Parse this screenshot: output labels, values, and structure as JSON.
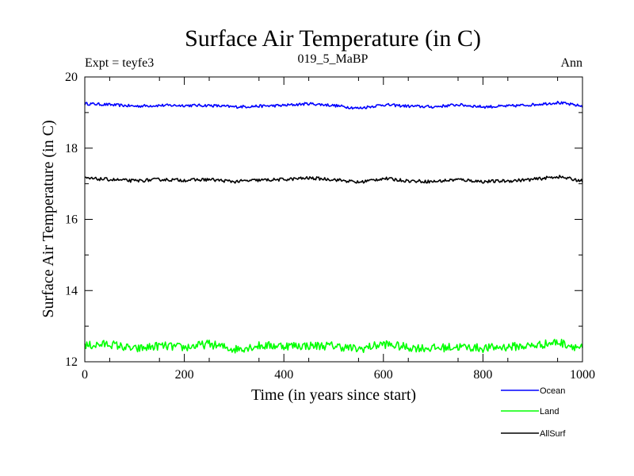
{
  "chart_data": {
    "type": "line",
    "title": "Surface Air Temperature (in C)",
    "subtitle_left": "Expt = teyfe3",
    "subtitle_center": "019_5_MaBP",
    "subtitle_right": "Ann",
    "xlabel": "Time (in years since start)",
    "ylabel": "Surface Air Temperature (in C)",
    "xlim": [
      0,
      1000
    ],
    "ylim": [
      12,
      20
    ],
    "xticks": [
      0,
      200,
      400,
      600,
      800,
      1000
    ],
    "yticks": [
      12,
      14,
      16,
      18,
      20
    ],
    "grid": false,
    "legend_position": "bottom-right",
    "series": [
      {
        "name": "Ocean",
        "color": "#0000ff",
        "x": [
          0,
          50,
          100,
          150,
          200,
          250,
          300,
          350,
          400,
          450,
          500,
          550,
          600,
          650,
          700,
          750,
          800,
          850,
          900,
          950,
          1000
        ],
        "values": [
          19.25,
          19.22,
          19.18,
          19.2,
          19.2,
          19.2,
          19.16,
          19.18,
          19.2,
          19.25,
          19.2,
          19.12,
          19.22,
          19.18,
          19.16,
          19.22,
          19.16,
          19.18,
          19.22,
          19.28,
          19.18
        ]
      },
      {
        "name": "Land",
        "color": "#00ff00",
        "x": [
          0,
          50,
          100,
          150,
          200,
          250,
          300,
          350,
          400,
          450,
          500,
          550,
          600,
          650,
          700,
          750,
          800,
          850,
          900,
          950,
          1000
        ],
        "values": [
          12.45,
          12.5,
          12.35,
          12.45,
          12.4,
          12.5,
          12.35,
          12.45,
          12.45,
          12.45,
          12.45,
          12.35,
          12.5,
          12.4,
          12.38,
          12.42,
          12.38,
          12.42,
          12.45,
          12.55,
          12.38
        ]
      },
      {
        "name": "AllSurf",
        "color": "#000000",
        "x": [
          0,
          50,
          100,
          150,
          200,
          250,
          300,
          350,
          400,
          450,
          500,
          550,
          600,
          650,
          700,
          750,
          800,
          850,
          900,
          950,
          1000
        ],
        "values": [
          17.15,
          17.12,
          17.08,
          17.12,
          17.1,
          17.12,
          17.06,
          17.1,
          17.12,
          17.16,
          17.12,
          17.04,
          17.15,
          17.08,
          17.06,
          17.12,
          17.06,
          17.08,
          17.12,
          17.2,
          17.08
        ]
      }
    ]
  }
}
